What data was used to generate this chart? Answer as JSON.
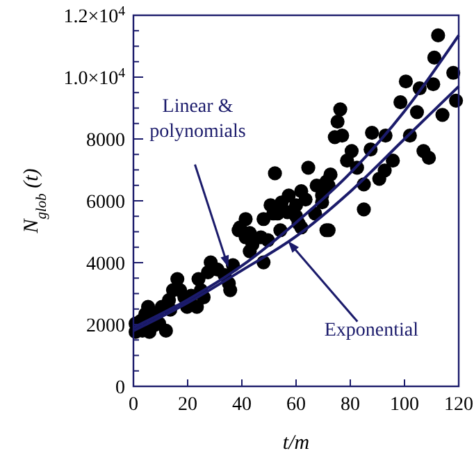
{
  "chart_data": {
    "type": "scatter",
    "xlabel": "t/m",
    "ylabel": "N$_{glob}$ (t)",
    "xlim": [
      0,
      120
    ],
    "xticks": [
      0,
      20,
      40,
      60,
      80,
      100,
      120
    ],
    "ylim": [
      0,
      12000
    ],
    "yticks": [
      0,
      {
        "value": 500,
        "label": null
      },
      {
        "value": 1000,
        "label": null
      },
      {
        "value": 1500,
        "label": null
      },
      2000,
      {
        "value": 2500,
        "label": null
      },
      {
        "value": 3000,
        "label": null
      },
      {
        "value": 3500,
        "label": null
      },
      4000,
      {
        "value": 4500,
        "label": null
      },
      {
        "value": 5000,
        "label": null
      },
      {
        "value": 5500,
        "label": null
      },
      6000,
      {
        "value": 6500,
        "label": null
      },
      {
        "value": 7000,
        "label": null
      },
      {
        "value": 7500,
        "label": null
      },
      8000,
      {
        "value": 8500,
        "label": null
      },
      {
        "value": 9000,
        "label": null
      },
      {
        "value": 9500,
        "label": null
      },
      {
        "value": 10000,
        "label": "1.0×10$^{4}$"
      },
      {
        "value": 10500,
        "label": null
      },
      {
        "value": 11000,
        "label": null
      },
      {
        "value": 11500,
        "label": null
      },
      {
        "value": 12000,
        "label": "1.2×10$^{4}$"
      }
    ],
    "grid": false,
    "series": [
      {
        "color": "#000000",
        "marker": "circle",
        "x": [
          112.4,
          111,
          118,
          119,
          114,
          110.6,
          100.5,
          105.6,
          98.5,
          104.6,
          102,
          107,
          109,
          93,
          88,
          87.5,
          95.7,
          92.7,
          90.7,
          85,
          76.3,
          75.3,
          74.3,
          77,
          80.5,
          78.8,
          82.5,
          85,
          72.7,
          71.2,
          64.5,
          67.6,
          72,
          69.6,
          52.2,
          50.6,
          54.7,
          57.3,
          60,
          56.8,
          61.9,
          63.5,
          69.6,
          67,
          60,
          61.9,
          72,
          41.4,
          39.3,
          48,
          51.6,
          42.9,
          54.2,
          38.8,
          41.4,
          43.9,
          47,
          49.6,
          48,
          42.9,
          53.2,
          60.9,
          71.2,
          28.5,
          27.5,
          31,
          33.6,
          36.7,
          35.2,
          35.7,
          24,
          24.9,
          25.9,
          21.3,
          23.4,
          19.8,
          16.2,
          17.2,
          14.6,
          13.1,
          13.6,
          10.5,
          8.5,
          9.5,
          12,
          5.4,
          4.4,
          2.8,
          0.8,
          0.8,
          5.9,
          7.7,
          3.3,
          18.8
        ],
        "values": [
          11350,
          10630,
          10140,
          9240,
          8780,
          9770,
          9860,
          9640,
          9190,
          8870,
          8110,
          7610,
          7390,
          8110,
          8200,
          7660,
          7300,
          6980,
          6710,
          5720,
          8960,
          8560,
          8060,
          8110,
          7610,
          7300,
          7070,
          6530,
          6850,
          6620,
          7070,
          6490,
          6490,
          6170,
          6890,
          5860,
          5950,
          6170,
          5860,
          5630,
          6310,
          6040,
          5950,
          5590,
          5500,
          5140,
          5050,
          5410,
          5140,
          5410,
          5590,
          4960,
          5050,
          5050,
          4820,
          4590,
          4820,
          4730,
          4010,
          4370,
          5590,
          5270,
          5050,
          4010,
          3690,
          3780,
          3600,
          3920,
          3330,
          3110,
          3470,
          3110,
          2880,
          2930,
          2570,
          2570,
          3470,
          3110,
          3110,
          2790,
          2480,
          2570,
          2340,
          2030,
          1800,
          2570,
          2340,
          2120,
          2030,
          1760,
          1760,
          1980,
          1800,
          2880
        ]
      },
      {
        "type": "line",
        "color": "#1b1b6b",
        "marker": "none",
        "x": [
          0,
          20,
          40,
          60,
          80,
          100,
          120
        ],
        "values": [
          1900,
          2800,
          3900,
          5300,
          6900,
          8900,
          11350
        ]
      },
      {
        "type": "line",
        "color": "#1b1b6b",
        "marker": "none",
        "x": [
          0,
          20,
          40,
          60,
          80,
          100,
          120
        ],
        "values": [
          1800,
          2700,
          3750,
          4850,
          6300,
          8000,
          9700
        ]
      }
    ],
    "annotations": [
      {
        "text": "Linear & polynomials",
        "x": 35,
        "y": 3850
      },
      {
        "text": "Exponential",
        "x": 57,
        "y": 4700
      }
    ]
  }
}
